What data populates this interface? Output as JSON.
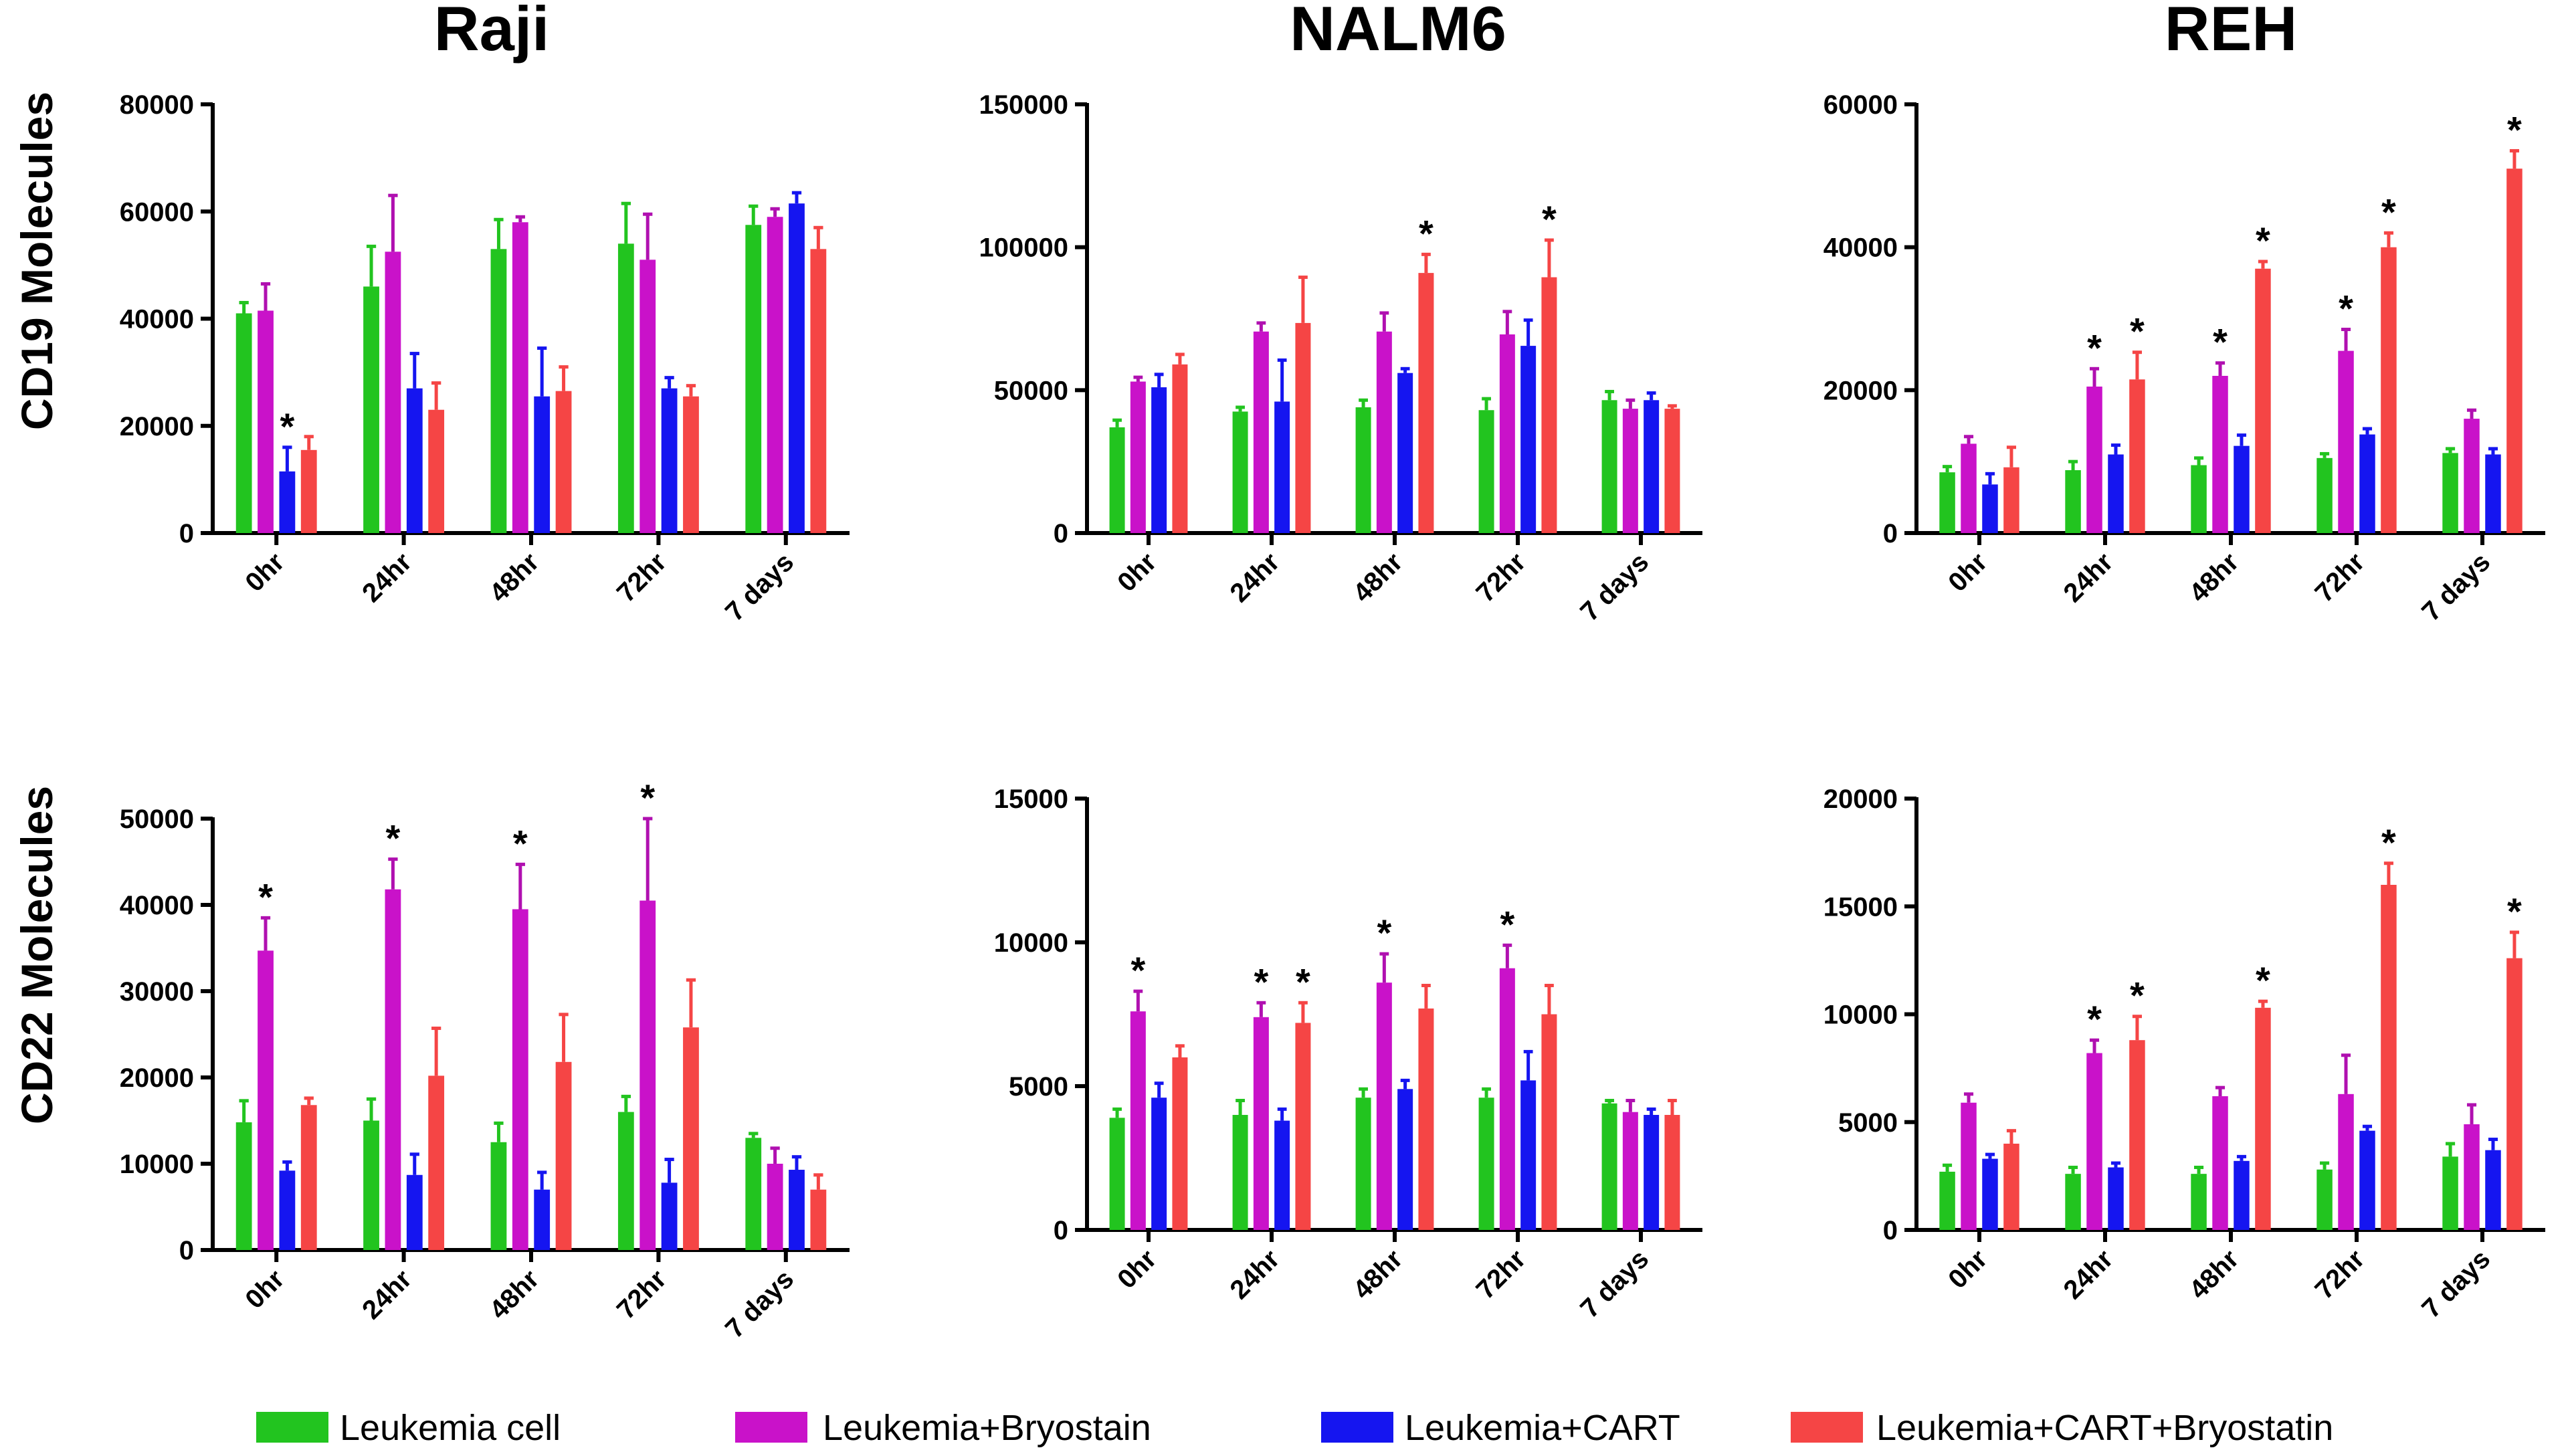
{
  "chart_data": [
    {
      "type": "bar",
      "title": "Raji",
      "ylabel": "CD19 Molecules",
      "categories": [
        "0hr",
        "24hr",
        "48hr",
        "72hr",
        "7 days"
      ],
      "ylim": [
        0,
        80000
      ],
      "yticks": [
        "0",
        "20000",
        "40000",
        "60000",
        "80000"
      ],
      "series": [
        {
          "name": "Leukemia cell",
          "values": [
            41000,
            46000,
            53000,
            54000,
            57500
          ],
          "errors": [
            2000,
            7500,
            5500,
            7500,
            3500
          ],
          "stars": [
            false,
            false,
            false,
            false,
            false
          ]
        },
        {
          "name": "Leukemia+Bryostain",
          "values": [
            41500,
            52500,
            58000,
            51000,
            59000
          ],
          "errors": [
            5000,
            10500,
            1000,
            8500,
            1500
          ],
          "stars": [
            false,
            false,
            false,
            false,
            false
          ]
        },
        {
          "name": "Leukemia+CART",
          "values": [
            11500,
            27000,
            25500,
            27000,
            61500
          ],
          "errors": [
            4500,
            6500,
            9000,
            2000,
            2000
          ],
          "stars": [
            true,
            false,
            false,
            false,
            false
          ]
        },
        {
          "name": "Leukemia+CART+Bryostatin",
          "values": [
            15500,
            23000,
            26500,
            25500,
            53000
          ],
          "errors": [
            2500,
            5000,
            4500,
            2000,
            4000
          ],
          "stars": [
            false,
            false,
            false,
            false,
            false
          ]
        }
      ]
    },
    {
      "type": "bar",
      "title": "NALM6",
      "ylabel": "",
      "categories": [
        "0hr",
        "24hr",
        "48hr",
        "72hr",
        "7 days"
      ],
      "ylim": [
        0,
        150000
      ],
      "yticks": [
        "0",
        "50000",
        "100000",
        "150000"
      ],
      "series": [
        {
          "name": "Leukemia cell",
          "values": [
            37000,
            42500,
            44000,
            43000,
            46500
          ],
          "errors": [
            2500,
            1500,
            2500,
            4000,
            3000
          ],
          "stars": [
            false,
            false,
            false,
            false,
            false
          ]
        },
        {
          "name": "Leukemia+Bryostain",
          "values": [
            53000,
            70500,
            70500,
            69500,
            43500
          ],
          "errors": [
            1500,
            3000,
            6500,
            8000,
            3000
          ],
          "stars": [
            false,
            false,
            false,
            false,
            false
          ]
        },
        {
          "name": "Leukemia+CART",
          "values": [
            51000,
            46000,
            56000,
            65500,
            46500
          ],
          "errors": [
            4500,
            14500,
            1500,
            9000,
            2500
          ],
          "stars": [
            false,
            false,
            false,
            false,
            false
          ]
        },
        {
          "name": "Leukemia+CART+Bryostatin",
          "values": [
            59000,
            73500,
            91000,
            89500,
            43500
          ],
          "errors": [
            3500,
            16000,
            6500,
            13000,
            1000
          ],
          "stars": [
            false,
            false,
            true,
            true,
            false
          ]
        }
      ]
    },
    {
      "type": "bar",
      "title": "REH",
      "ylabel": "",
      "categories": [
        "0hr",
        "24hr",
        "48hr",
        "72hr",
        "7 days"
      ],
      "ylim": [
        0,
        60000
      ],
      "yticks": [
        "0",
        "20000",
        "40000",
        "60000"
      ],
      "series": [
        {
          "name": "Leukemia cell",
          "values": [
            8500,
            8800,
            9500,
            10500,
            11200
          ],
          "errors": [
            800,
            1200,
            1000,
            600,
            600
          ],
          "stars": [
            false,
            false,
            false,
            false,
            false
          ]
        },
        {
          "name": "Leukemia+Bryostain",
          "values": [
            12500,
            20500,
            22000,
            25500,
            16000
          ],
          "errors": [
            1000,
            2500,
            1800,
            3000,
            1200
          ],
          "stars": [
            false,
            true,
            true,
            true,
            false
          ]
        },
        {
          "name": "Leukemia+CART",
          "values": [
            6800,
            11000,
            12200,
            13800,
            11000
          ],
          "errors": [
            1500,
            1300,
            1500,
            800,
            800
          ],
          "stars": [
            false,
            false,
            false,
            false,
            false
          ]
        },
        {
          "name": "Leukemia+CART+Bryostatin",
          "values": [
            9200,
            21500,
            37000,
            40000,
            51000
          ],
          "errors": [
            2800,
            3800,
            1000,
            2000,
            2500
          ],
          "stars": [
            false,
            true,
            true,
            true,
            true
          ]
        }
      ]
    },
    {
      "type": "bar",
      "title": "",
      "ylabel": "CD22 Molecules",
      "categories": [
        "0hr",
        "24hr",
        "48hr",
        "72hr",
        "7 days"
      ],
      "ylim": [
        0,
        50000
      ],
      "yticks": [
        "0",
        "10000",
        "20000",
        "30000",
        "40000",
        "50000"
      ],
      "series": [
        {
          "name": "Leukemia cell",
          "values": [
            14800,
            15000,
            12500,
            16000,
            13000
          ],
          "errors": [
            2500,
            2500,
            2200,
            1800,
            500
          ],
          "stars": [
            false,
            false,
            false,
            false,
            false
          ]
        },
        {
          "name": "Leukemia+Bryostain",
          "values": [
            34700,
            41800,
            39500,
            40500,
            10000
          ],
          "errors": [
            3800,
            3500,
            5200,
            9500,
            1800
          ],
          "stars": [
            true,
            true,
            true,
            true,
            false
          ]
        },
        {
          "name": "Leukemia+CART",
          "values": [
            9200,
            8700,
            7000,
            7800,
            9300
          ],
          "errors": [
            1000,
            2400,
            2000,
            2700,
            1500
          ],
          "stars": [
            false,
            false,
            false,
            false,
            false
          ]
        },
        {
          "name": "Leukemia+CART+Bryostatin",
          "values": [
            16800,
            20200,
            21800,
            25800,
            7000
          ],
          "errors": [
            800,
            5500,
            5500,
            5500,
            1700
          ],
          "stars": [
            false,
            false,
            false,
            false,
            false
          ]
        }
      ]
    },
    {
      "type": "bar",
      "title": "",
      "ylabel": "",
      "categories": [
        "0hr",
        "24hr",
        "48hr",
        "72hr",
        "7 days"
      ],
      "ylim": [
        0,
        15000
      ],
      "yticks": [
        "0",
        "5000",
        "10000",
        "15000"
      ],
      "series": [
        {
          "name": "Leukemia cell",
          "values": [
            3900,
            4000,
            4600,
            4600,
            4400
          ],
          "errors": [
            300,
            500,
            300,
            300,
            100
          ],
          "stars": [
            false,
            false,
            false,
            false,
            false
          ]
        },
        {
          "name": "Leukemia+Bryostain",
          "values": [
            7600,
            7400,
            8600,
            9100,
            4100
          ],
          "errors": [
            700,
            500,
            1000,
            800,
            400
          ],
          "stars": [
            true,
            true,
            true,
            true,
            false
          ]
        },
        {
          "name": "Leukemia+CART",
          "values": [
            4600,
            3800,
            4900,
            5200,
            4000
          ],
          "errors": [
            500,
            400,
            300,
            1000,
            200
          ],
          "stars": [
            false,
            false,
            false,
            false,
            false
          ]
        },
        {
          "name": "Leukemia+CART+Bryostatin",
          "values": [
            6000,
            7200,
            7700,
            7500,
            4000
          ],
          "errors": [
            400,
            700,
            800,
            1000,
            500
          ],
          "stars": [
            false,
            true,
            false,
            false,
            false
          ]
        }
      ]
    },
    {
      "type": "bar",
      "title": "",
      "ylabel": "",
      "categories": [
        "0hr",
        "24hr",
        "48hr",
        "72hr",
        "7 days"
      ],
      "ylim": [
        0,
        20000
      ],
      "yticks": [
        "0",
        "5000",
        "10000",
        "15000",
        "20000"
      ],
      "series": [
        {
          "name": "Leukemia cell",
          "values": [
            2700,
            2600,
            2600,
            2800,
            3400
          ],
          "errors": [
            300,
            300,
            300,
            300,
            600
          ],
          "stars": [
            false,
            false,
            false,
            false,
            false
          ]
        },
        {
          "name": "Leukemia+Bryostain",
          "values": [
            5900,
            8200,
            6200,
            6300,
            4900
          ],
          "errors": [
            400,
            600,
            400,
            1800,
            900
          ],
          "stars": [
            false,
            true,
            false,
            false,
            false
          ]
        },
        {
          "name": "Leukemia+CART",
          "values": [
            3300,
            2900,
            3200,
            4600,
            3700
          ],
          "errors": [
            200,
            200,
            200,
            200,
            500
          ],
          "stars": [
            false,
            false,
            false,
            false,
            false
          ]
        },
        {
          "name": "Leukemia+CART+Bryostatin",
          "values": [
            4000,
            8800,
            10300,
            16000,
            12600
          ],
          "errors": [
            600,
            1100,
            300,
            1000,
            1200
          ],
          "stars": [
            false,
            true,
            true,
            true,
            true
          ]
        }
      ]
    }
  ],
  "column_titles": [
    "Raji",
    "NALM6",
    "REH"
  ],
  "row_labels": [
    "CD19 Molecules",
    "CD22 Molecules"
  ],
  "star_symbol": "*",
  "legend": [
    {
      "label": "Leukemia cell",
      "color": "#22c41f"
    },
    {
      "label": "Leukemia+Bryostain",
      "color": "#c912c9"
    },
    {
      "label": "Leukemia+CART",
      "color": "#1515f0"
    },
    {
      "label": "Leukemia+CART+Bryostatin",
      "color": "#f54545"
    }
  ]
}
